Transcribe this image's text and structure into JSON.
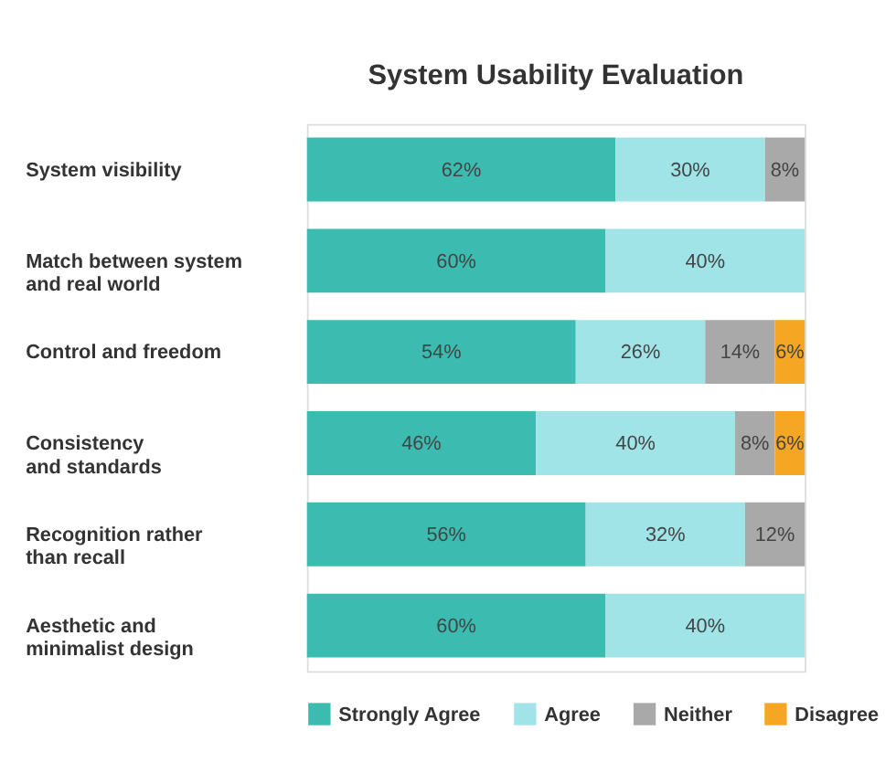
{
  "chart_data": {
    "type": "bar",
    "title": "System Usability Evaluation",
    "orientation": "horizontal",
    "stacked": true,
    "legend": "bottom",
    "tick_labels": "y",
    "categories": [
      "System visibility",
      "Match between system\nand real world",
      "Control and freedom",
      "Consistency\nand standards",
      "Recognition rather\nthan recall",
      "Aesthetic and\nminimalist design"
    ],
    "series": [
      {
        "name": "Strongly Agree",
        "color": "#3cbcb0",
        "values": [
          62,
          60,
          54,
          46,
          56,
          60
        ],
        "value_labels": [
          "62%",
          "60%",
          "54%",
          "46%",
          "56%",
          "60%"
        ]
      },
      {
        "name": "Agree",
        "color": "#a0e4e8",
        "values": [
          30,
          40,
          26,
          40,
          32,
          40
        ],
        "value_labels": [
          "30%",
          "40%",
          "26%",
          "40%",
          "32%",
          "40%"
        ]
      },
      {
        "name": "Neither",
        "color": "#a9a9a9",
        "values": [
          8,
          null,
          14,
          8,
          12,
          null
        ],
        "value_labels": [
          "8%",
          null,
          "14%",
          "8%",
          "12%",
          null
        ]
      },
      {
        "name": "Disagree",
        "color": "#f5a623",
        "values": [
          null,
          null,
          6,
          6,
          null,
          null
        ],
        "value_labels": [
          null,
          null,
          "6%",
          "6%",
          null,
          null
        ]
      }
    ]
  }
}
